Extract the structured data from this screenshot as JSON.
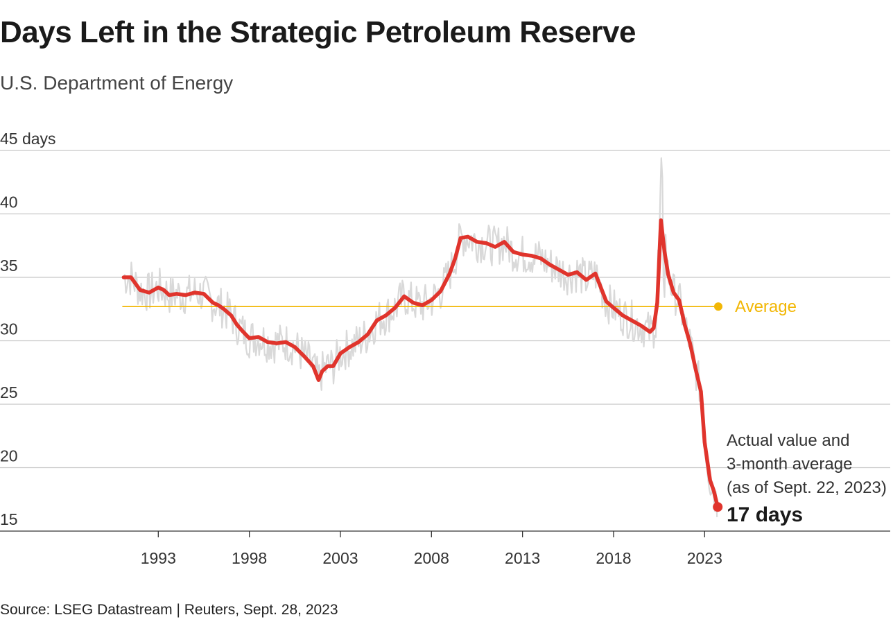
{
  "title": "Days Left in the Strategic Petroleum Reserve",
  "subtitle": "U.S. Department of Energy",
  "source": "Source: LSEG Datastream | Reuters, Sept. 28, 2023",
  "chart_data": {
    "type": "line",
    "x_range": [
      1988.8,
      2023.75
    ],
    "ylim": [
      15,
      45
    ],
    "y_ticks": [
      {
        "value": 45,
        "label": "45 days"
      },
      {
        "value": 40,
        "label": "40"
      },
      {
        "value": 35,
        "label": "35"
      },
      {
        "value": 30,
        "label": "30"
      },
      {
        "value": 25,
        "label": "25"
      },
      {
        "value": 20,
        "label": "20"
      },
      {
        "value": 15,
        "label": "15"
      }
    ],
    "x_ticks": [
      1993,
      1998,
      2003,
      2008,
      2013,
      2018,
      2023
    ],
    "grid": true,
    "series": [
      {
        "kind": "3-month average",
        "color": "#e0342c",
        "x": [
          1991.1,
          1991.5,
          1992.0,
          1992.5,
          1993.0,
          1993.3,
          1993.6,
          1994.0,
          1994.5,
          1995.0,
          1995.5,
          1996.0,
          1996.3,
          1996.6,
          1997.0,
          1997.3,
          1997.6,
          1998.0,
          1998.5,
          1999.0,
          1999.5,
          2000.0,
          2000.5,
          2001.0,
          2001.5,
          2001.8,
          2002.0,
          2002.3,
          2002.6,
          2003.0,
          2003.5,
          2004.0,
          2004.5,
          2005.0,
          2005.5,
          2006.0,
          2006.5,
          2007.0,
          2007.5,
          2008.0,
          2008.5,
          2009.0,
          2009.3,
          2009.6,
          2010.0,
          2010.5,
          2011.0,
          2011.5,
          2012.0,
          2012.5,
          2013.0,
          2013.5,
          2014.0,
          2014.5,
          2015.0,
          2015.5,
          2016.0,
          2016.5,
          2017.0,
          2017.3,
          2017.6,
          2018.0,
          2018.5,
          2019.0,
          2019.5,
          2020.0,
          2020.2,
          2020.4,
          2020.6,
          2020.8,
          2021.0,
          2021.3,
          2021.6,
          2021.9,
          2022.2,
          2022.5,
          2022.8,
          2023.0,
          2023.3,
          2023.5,
          2023.72
        ],
        "y": [
          35.0,
          35.0,
          34.0,
          33.8,
          34.2,
          34.0,
          33.6,
          33.7,
          33.6,
          33.8,
          33.7,
          33.0,
          32.8,
          32.5,
          32.0,
          31.3,
          30.8,
          30.2,
          30.3,
          29.9,
          29.8,
          29.9,
          29.5,
          28.8,
          28.0,
          26.9,
          27.6,
          28.0,
          28.0,
          29.0,
          29.5,
          29.9,
          30.5,
          31.6,
          32.0,
          32.6,
          33.5,
          33.0,
          32.8,
          33.2,
          33.9,
          35.3,
          36.5,
          38.1,
          38.2,
          37.8,
          37.7,
          37.4,
          37.8,
          37.0,
          36.8,
          36.7,
          36.5,
          36.0,
          35.6,
          35.2,
          35.4,
          34.8,
          35.3,
          34.2,
          33.1,
          32.6,
          32.0,
          31.6,
          31.2,
          30.7,
          31.0,
          33.0,
          39.5,
          37.0,
          35.2,
          33.8,
          33.2,
          31.3,
          29.8,
          27.8,
          26.0,
          22.0,
          19.0,
          18.2,
          16.9
        ]
      }
    ],
    "average": {
      "value": 32.7,
      "label": "Average",
      "color": "#f2b705"
    },
    "annotation": {
      "lines": [
        "Actual value and",
        "3-month average",
        "(as of Sept. 22, 2023)"
      ],
      "value_label": "17 days",
      "value": 16.9
    },
    "colors": {
      "actual_band": "#d9d9d9",
      "average_line": "#e0342c",
      "grid": "#c8c8c8"
    }
  }
}
